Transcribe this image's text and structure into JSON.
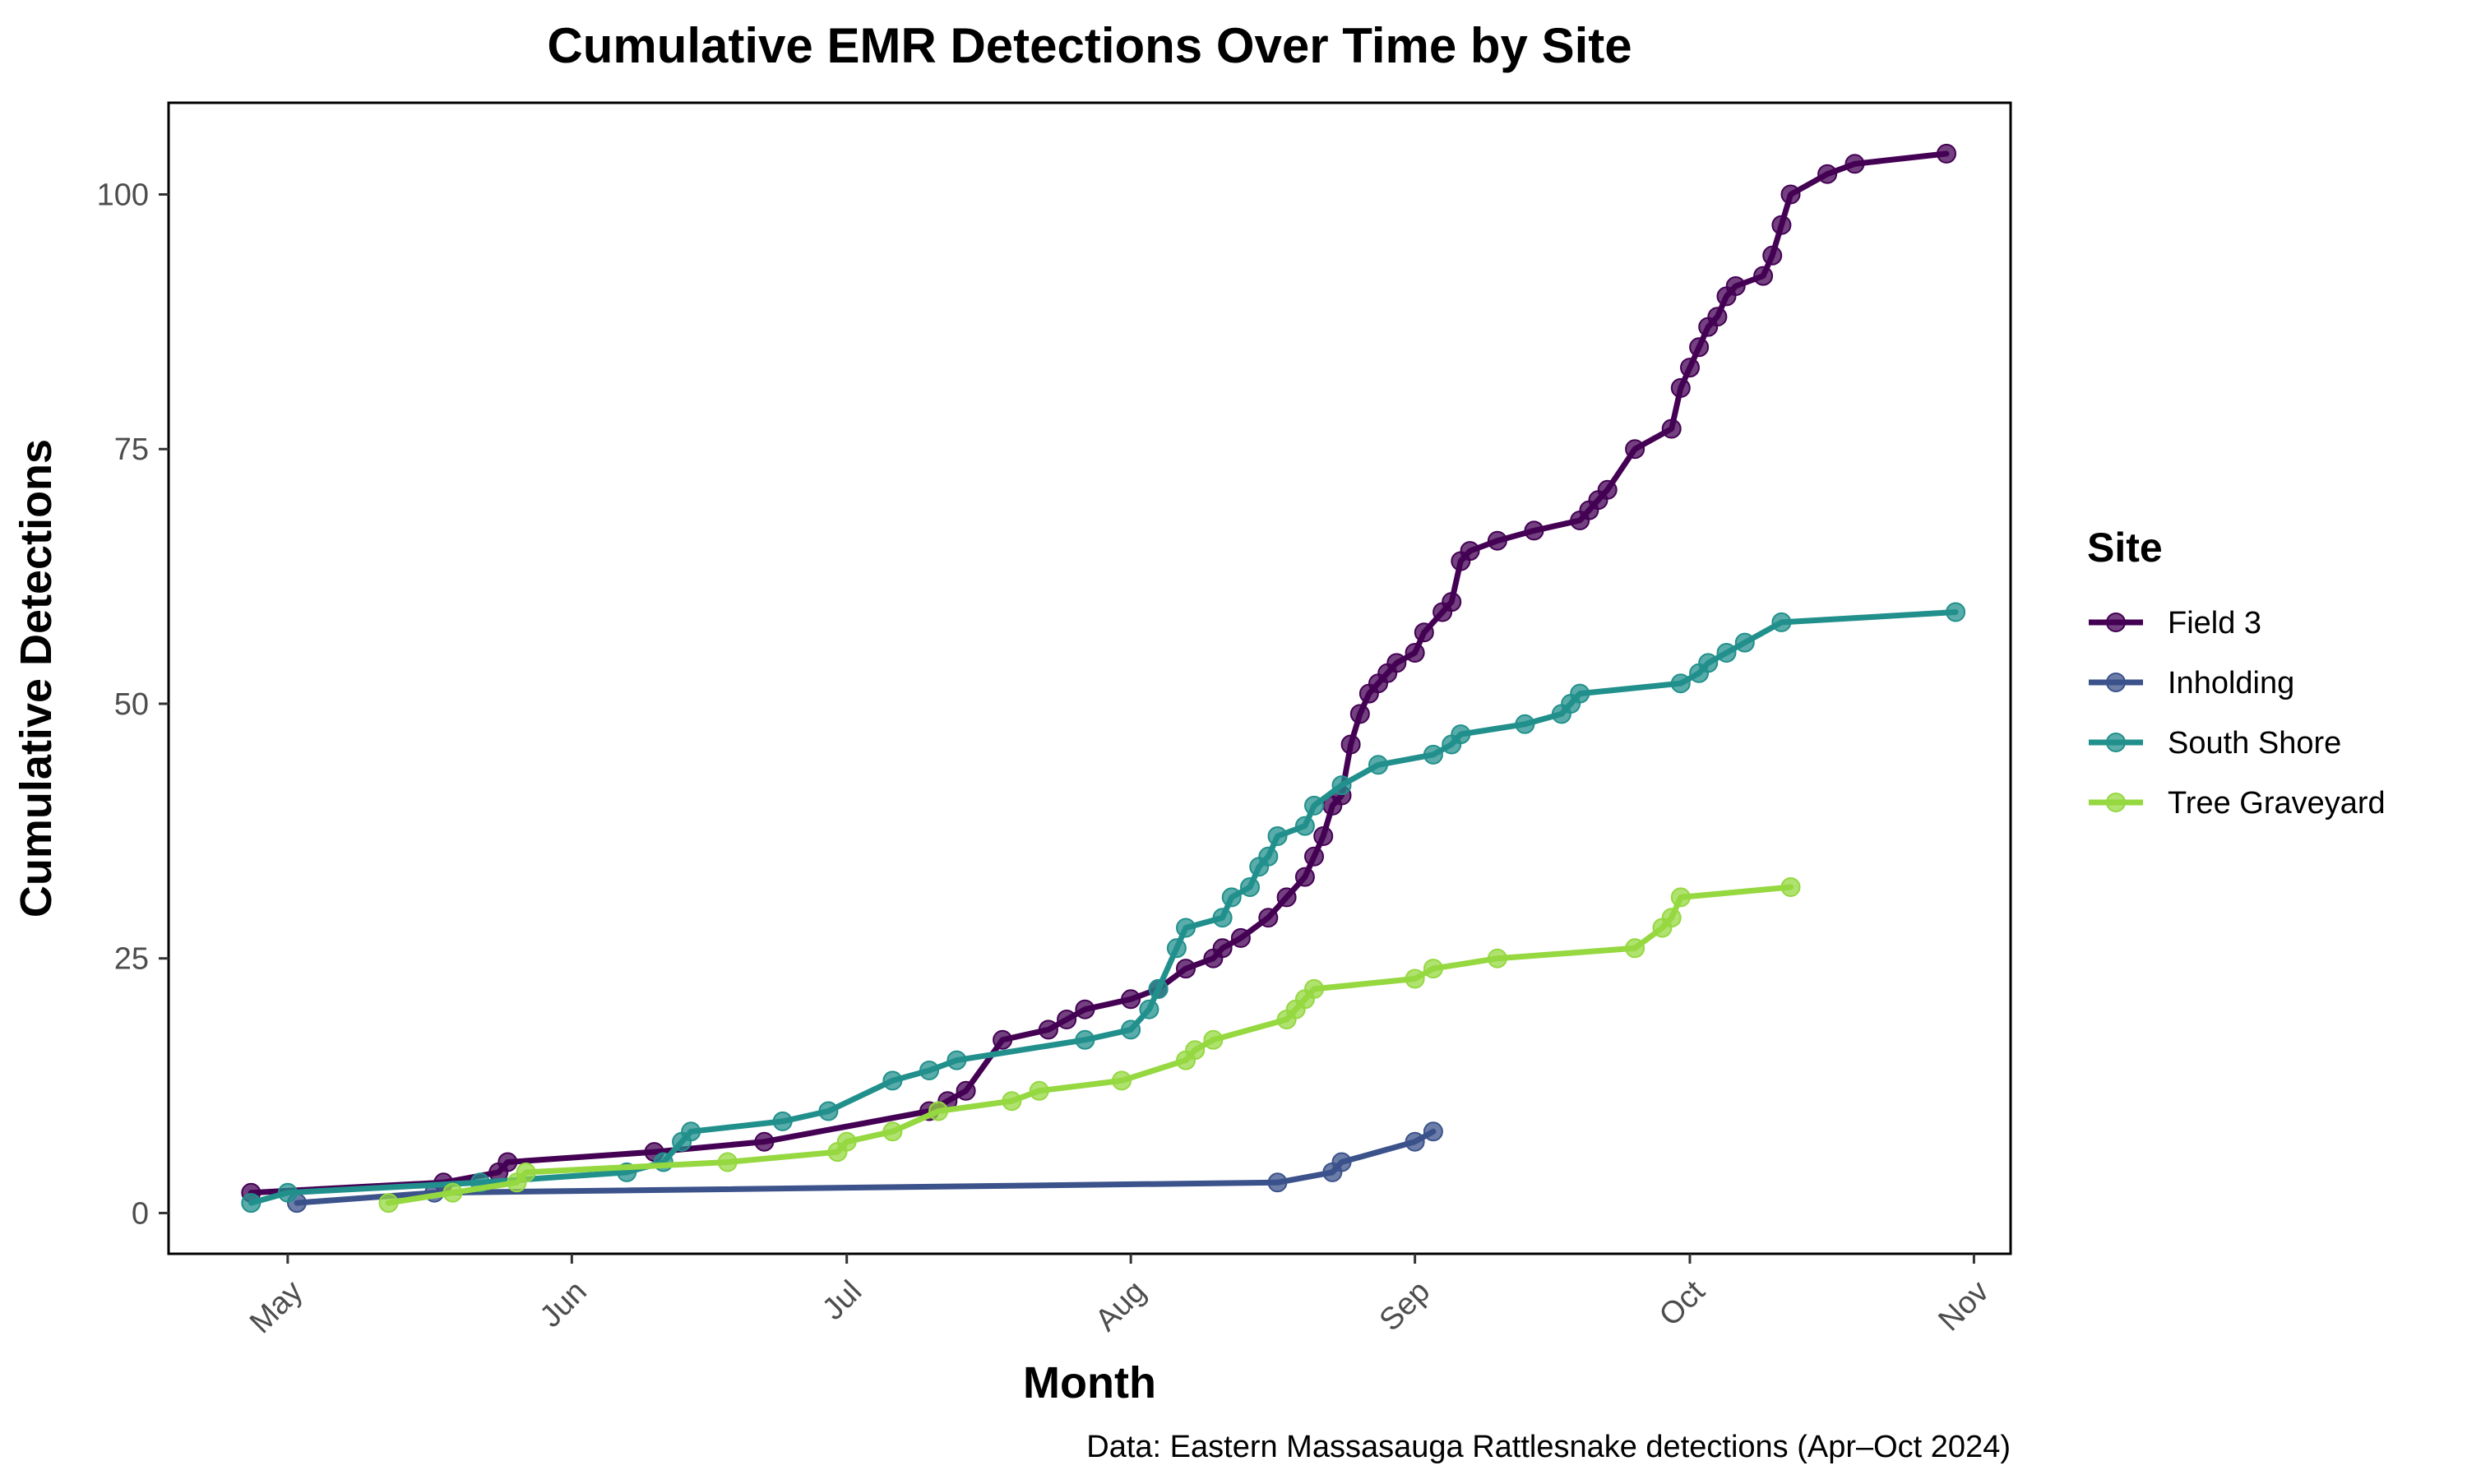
{
  "chart_data": {
    "type": "line",
    "title": "Cumulative EMR Detections Over Time by Site",
    "xlabel": "Month",
    "ylabel": "Cumulative Detections",
    "caption": "Data: Eastern Massasauga Rattlesnake detections (Apr–Oct 2024)",
    "legend_title": "Site",
    "legend_position": "right",
    "grid": false,
    "x_type": "date",
    "xlim": [
      "2024-04-18",
      "2024-11-05"
    ],
    "ylim": [
      -4,
      109
    ],
    "x_ticks": [
      {
        "date": "2024-05-01",
        "label": "May"
      },
      {
        "date": "2024-06-01",
        "label": "Jun"
      },
      {
        "date": "2024-07-01",
        "label": "Jul"
      },
      {
        "date": "2024-08-01",
        "label": "Aug"
      },
      {
        "date": "2024-09-01",
        "label": "Sep"
      },
      {
        "date": "2024-10-01",
        "label": "Oct"
      },
      {
        "date": "2024-11-01",
        "label": "Nov"
      }
    ],
    "y_ticks": [
      0,
      25,
      50,
      75,
      100
    ],
    "series": [
      {
        "name": "Field 3",
        "color": "#440154",
        "points": [
          [
            "2024-04-27",
            2
          ],
          [
            "2024-05-18",
            3
          ],
          [
            "2024-05-24",
            4
          ],
          [
            "2024-05-25",
            5
          ],
          [
            "2024-06-10",
            6
          ],
          [
            "2024-06-22",
            7
          ],
          [
            "2024-07-10",
            10
          ],
          [
            "2024-07-12",
            11
          ],
          [
            "2024-07-14",
            12
          ],
          [
            "2024-07-18",
            17
          ],
          [
            "2024-07-23",
            18
          ],
          [
            "2024-07-25",
            19
          ],
          [
            "2024-07-27",
            20
          ],
          [
            "2024-08-01",
            21
          ],
          [
            "2024-08-04",
            22
          ],
          [
            "2024-08-07",
            24
          ],
          [
            "2024-08-10",
            25
          ],
          [
            "2024-08-11",
            26
          ],
          [
            "2024-08-13",
            27
          ],
          [
            "2024-08-16",
            29
          ],
          [
            "2024-08-18",
            31
          ],
          [
            "2024-08-20",
            33
          ],
          [
            "2024-08-21",
            35
          ],
          [
            "2024-08-22",
            37
          ],
          [
            "2024-08-23",
            40
          ],
          [
            "2024-08-24",
            41
          ],
          [
            "2024-08-25",
            46
          ],
          [
            "2024-08-26",
            49
          ],
          [
            "2024-08-27",
            51
          ],
          [
            "2024-08-28",
            52
          ],
          [
            "2024-08-29",
            53
          ],
          [
            "2024-08-30",
            54
          ],
          [
            "2024-09-01",
            55
          ],
          [
            "2024-09-02",
            57
          ],
          [
            "2024-09-04",
            59
          ],
          [
            "2024-09-05",
            60
          ],
          [
            "2024-09-06",
            64
          ],
          [
            "2024-09-07",
            65
          ],
          [
            "2024-09-10",
            66
          ],
          [
            "2024-09-14",
            67
          ],
          [
            "2024-09-19",
            68
          ],
          [
            "2024-09-20",
            69
          ],
          [
            "2024-09-21",
            70
          ],
          [
            "2024-09-22",
            71
          ],
          [
            "2024-09-25",
            75
          ],
          [
            "2024-09-29",
            77
          ],
          [
            "2024-09-30",
            81
          ],
          [
            "2024-10-01",
            83
          ],
          [
            "2024-10-02",
            85
          ],
          [
            "2024-10-03",
            87
          ],
          [
            "2024-10-04",
            88
          ],
          [
            "2024-10-05",
            90
          ],
          [
            "2024-10-06",
            91
          ],
          [
            "2024-10-09",
            92
          ],
          [
            "2024-10-10",
            94
          ],
          [
            "2024-10-11",
            97
          ],
          [
            "2024-10-12",
            100
          ],
          [
            "2024-10-16",
            102
          ],
          [
            "2024-10-19",
            103
          ],
          [
            "2024-10-29",
            104
          ]
        ]
      },
      {
        "name": "Inholding",
        "color": "#3b528b",
        "points": [
          [
            "2024-05-02",
            1
          ],
          [
            "2024-05-17",
            2
          ],
          [
            "2024-08-17",
            3
          ],
          [
            "2024-08-23",
            4
          ],
          [
            "2024-08-24",
            5
          ],
          [
            "2024-09-01",
            7
          ],
          [
            "2024-09-03",
            8
          ]
        ]
      },
      {
        "name": "South Shore",
        "color": "#21908c",
        "points": [
          [
            "2024-04-27",
            1
          ],
          [
            "2024-05-01",
            2
          ],
          [
            "2024-05-22",
            3
          ],
          [
            "2024-06-07",
            4
          ],
          [
            "2024-06-11",
            5
          ],
          [
            "2024-06-13",
            7
          ],
          [
            "2024-06-14",
            8
          ],
          [
            "2024-06-24",
            9
          ],
          [
            "2024-06-29",
            10
          ],
          [
            "2024-07-06",
            13
          ],
          [
            "2024-07-10",
            14
          ],
          [
            "2024-07-13",
            15
          ],
          [
            "2024-07-27",
            17
          ],
          [
            "2024-08-01",
            18
          ],
          [
            "2024-08-03",
            20
          ],
          [
            "2024-08-04",
            22
          ],
          [
            "2024-08-06",
            26
          ],
          [
            "2024-08-07",
            28
          ],
          [
            "2024-08-11",
            29
          ],
          [
            "2024-08-12",
            31
          ],
          [
            "2024-08-14",
            32
          ],
          [
            "2024-08-15",
            34
          ],
          [
            "2024-08-16",
            35
          ],
          [
            "2024-08-17",
            37
          ],
          [
            "2024-08-20",
            38
          ],
          [
            "2024-08-21",
            40
          ],
          [
            "2024-08-24",
            42
          ],
          [
            "2024-08-28",
            44
          ],
          [
            "2024-09-03",
            45
          ],
          [
            "2024-09-05",
            46
          ],
          [
            "2024-09-06",
            47
          ],
          [
            "2024-09-13",
            48
          ],
          [
            "2024-09-17",
            49
          ],
          [
            "2024-09-18",
            50
          ],
          [
            "2024-09-19",
            51
          ],
          [
            "2024-09-30",
            52
          ],
          [
            "2024-10-02",
            53
          ],
          [
            "2024-10-03",
            54
          ],
          [
            "2024-10-05",
            55
          ],
          [
            "2024-10-07",
            56
          ],
          [
            "2024-10-11",
            58
          ],
          [
            "2024-10-30",
            59
          ]
        ]
      },
      {
        "name": "Tree Graveyard",
        "color": "#95d840",
        "points": [
          [
            "2024-05-12",
            1
          ],
          [
            "2024-05-19",
            2
          ],
          [
            "2024-05-26",
            3
          ],
          [
            "2024-05-27",
            4
          ],
          [
            "2024-06-18",
            5
          ],
          [
            "2024-06-30",
            6
          ],
          [
            "2024-07-01",
            7
          ],
          [
            "2024-07-06",
            8
          ],
          [
            "2024-07-11",
            10
          ],
          [
            "2024-07-19",
            11
          ],
          [
            "2024-07-22",
            12
          ],
          [
            "2024-07-31",
            13
          ],
          [
            "2024-08-07",
            15
          ],
          [
            "2024-08-08",
            16
          ],
          [
            "2024-08-10",
            17
          ],
          [
            "2024-08-18",
            19
          ],
          [
            "2024-08-19",
            20
          ],
          [
            "2024-08-20",
            21
          ],
          [
            "2024-08-21",
            22
          ],
          [
            "2024-09-01",
            23
          ],
          [
            "2024-09-03",
            24
          ],
          [
            "2024-09-10",
            25
          ],
          [
            "2024-09-25",
            26
          ],
          [
            "2024-09-28",
            28
          ],
          [
            "2024-09-29",
            29
          ],
          [
            "2024-09-30",
            31
          ],
          [
            "2024-10-12",
            32
          ]
        ]
      }
    ]
  }
}
